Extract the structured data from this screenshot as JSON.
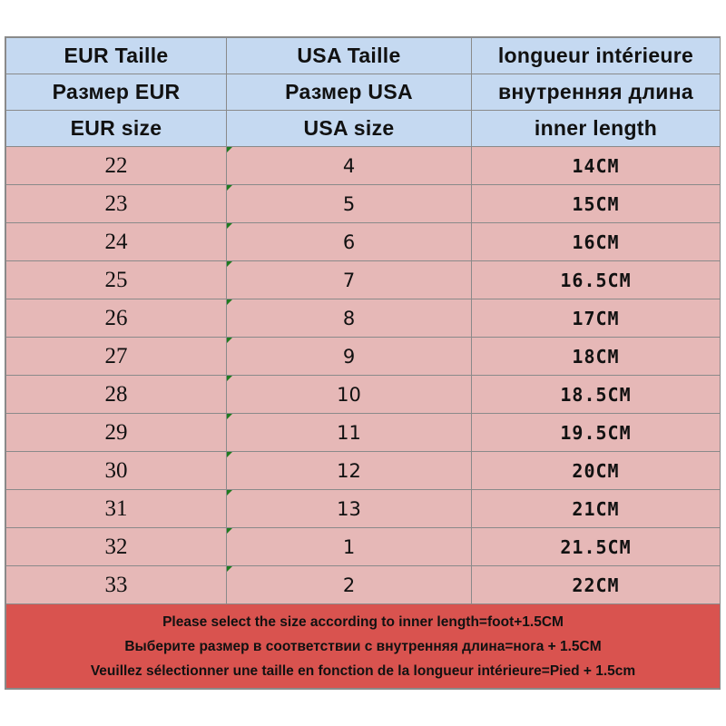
{
  "headers": [
    [
      "EUR  Taille",
      "USA Taille",
      "longueur  intérieure"
    ],
    [
      "Размер EUR",
      "Размер USA",
      "внутренняя  длина"
    ],
    [
      "EUR  size",
      "USA size",
      "inner length"
    ]
  ],
  "rows": [
    {
      "eur": "22",
      "usa": "4",
      "length": "14CM"
    },
    {
      "eur": "23",
      "usa": "5",
      "length": "15CM"
    },
    {
      "eur": "24",
      "usa": "6",
      "length": "16CM"
    },
    {
      "eur": "25",
      "usa": "7",
      "length": "16.5CM"
    },
    {
      "eur": "26",
      "usa": "8",
      "length": "17CM"
    },
    {
      "eur": "27",
      "usa": "9",
      "length": "18CM"
    },
    {
      "eur": "28",
      "usa": "10",
      "length": "18.5CM"
    },
    {
      "eur": "29",
      "usa": "11",
      "length": "19.5CM"
    },
    {
      "eur": "30",
      "usa": "12",
      "length": "20CM"
    },
    {
      "eur": "31",
      "usa": "13",
      "length": "21CM"
    },
    {
      "eur": "32",
      "usa": "1",
      "length": "21.5CM"
    },
    {
      "eur": "33",
      "usa": "2",
      "length": "22CM"
    }
  ],
  "notes": [
    "Please select the size according to inner length=foot+1.5CM",
    "Выберите размер в соответствии с внутренняя длина=нога + 1.5CM",
    "Veuillez sélectionner une taille en fonction de la longueur intérieure=Pied + 1.5cm"
  ],
  "colors": {
    "header_bg": "#c5d9f1",
    "row_bg": "#e6b8b7",
    "note_bg": "#d9534f",
    "grid": "#8a8a8a"
  }
}
